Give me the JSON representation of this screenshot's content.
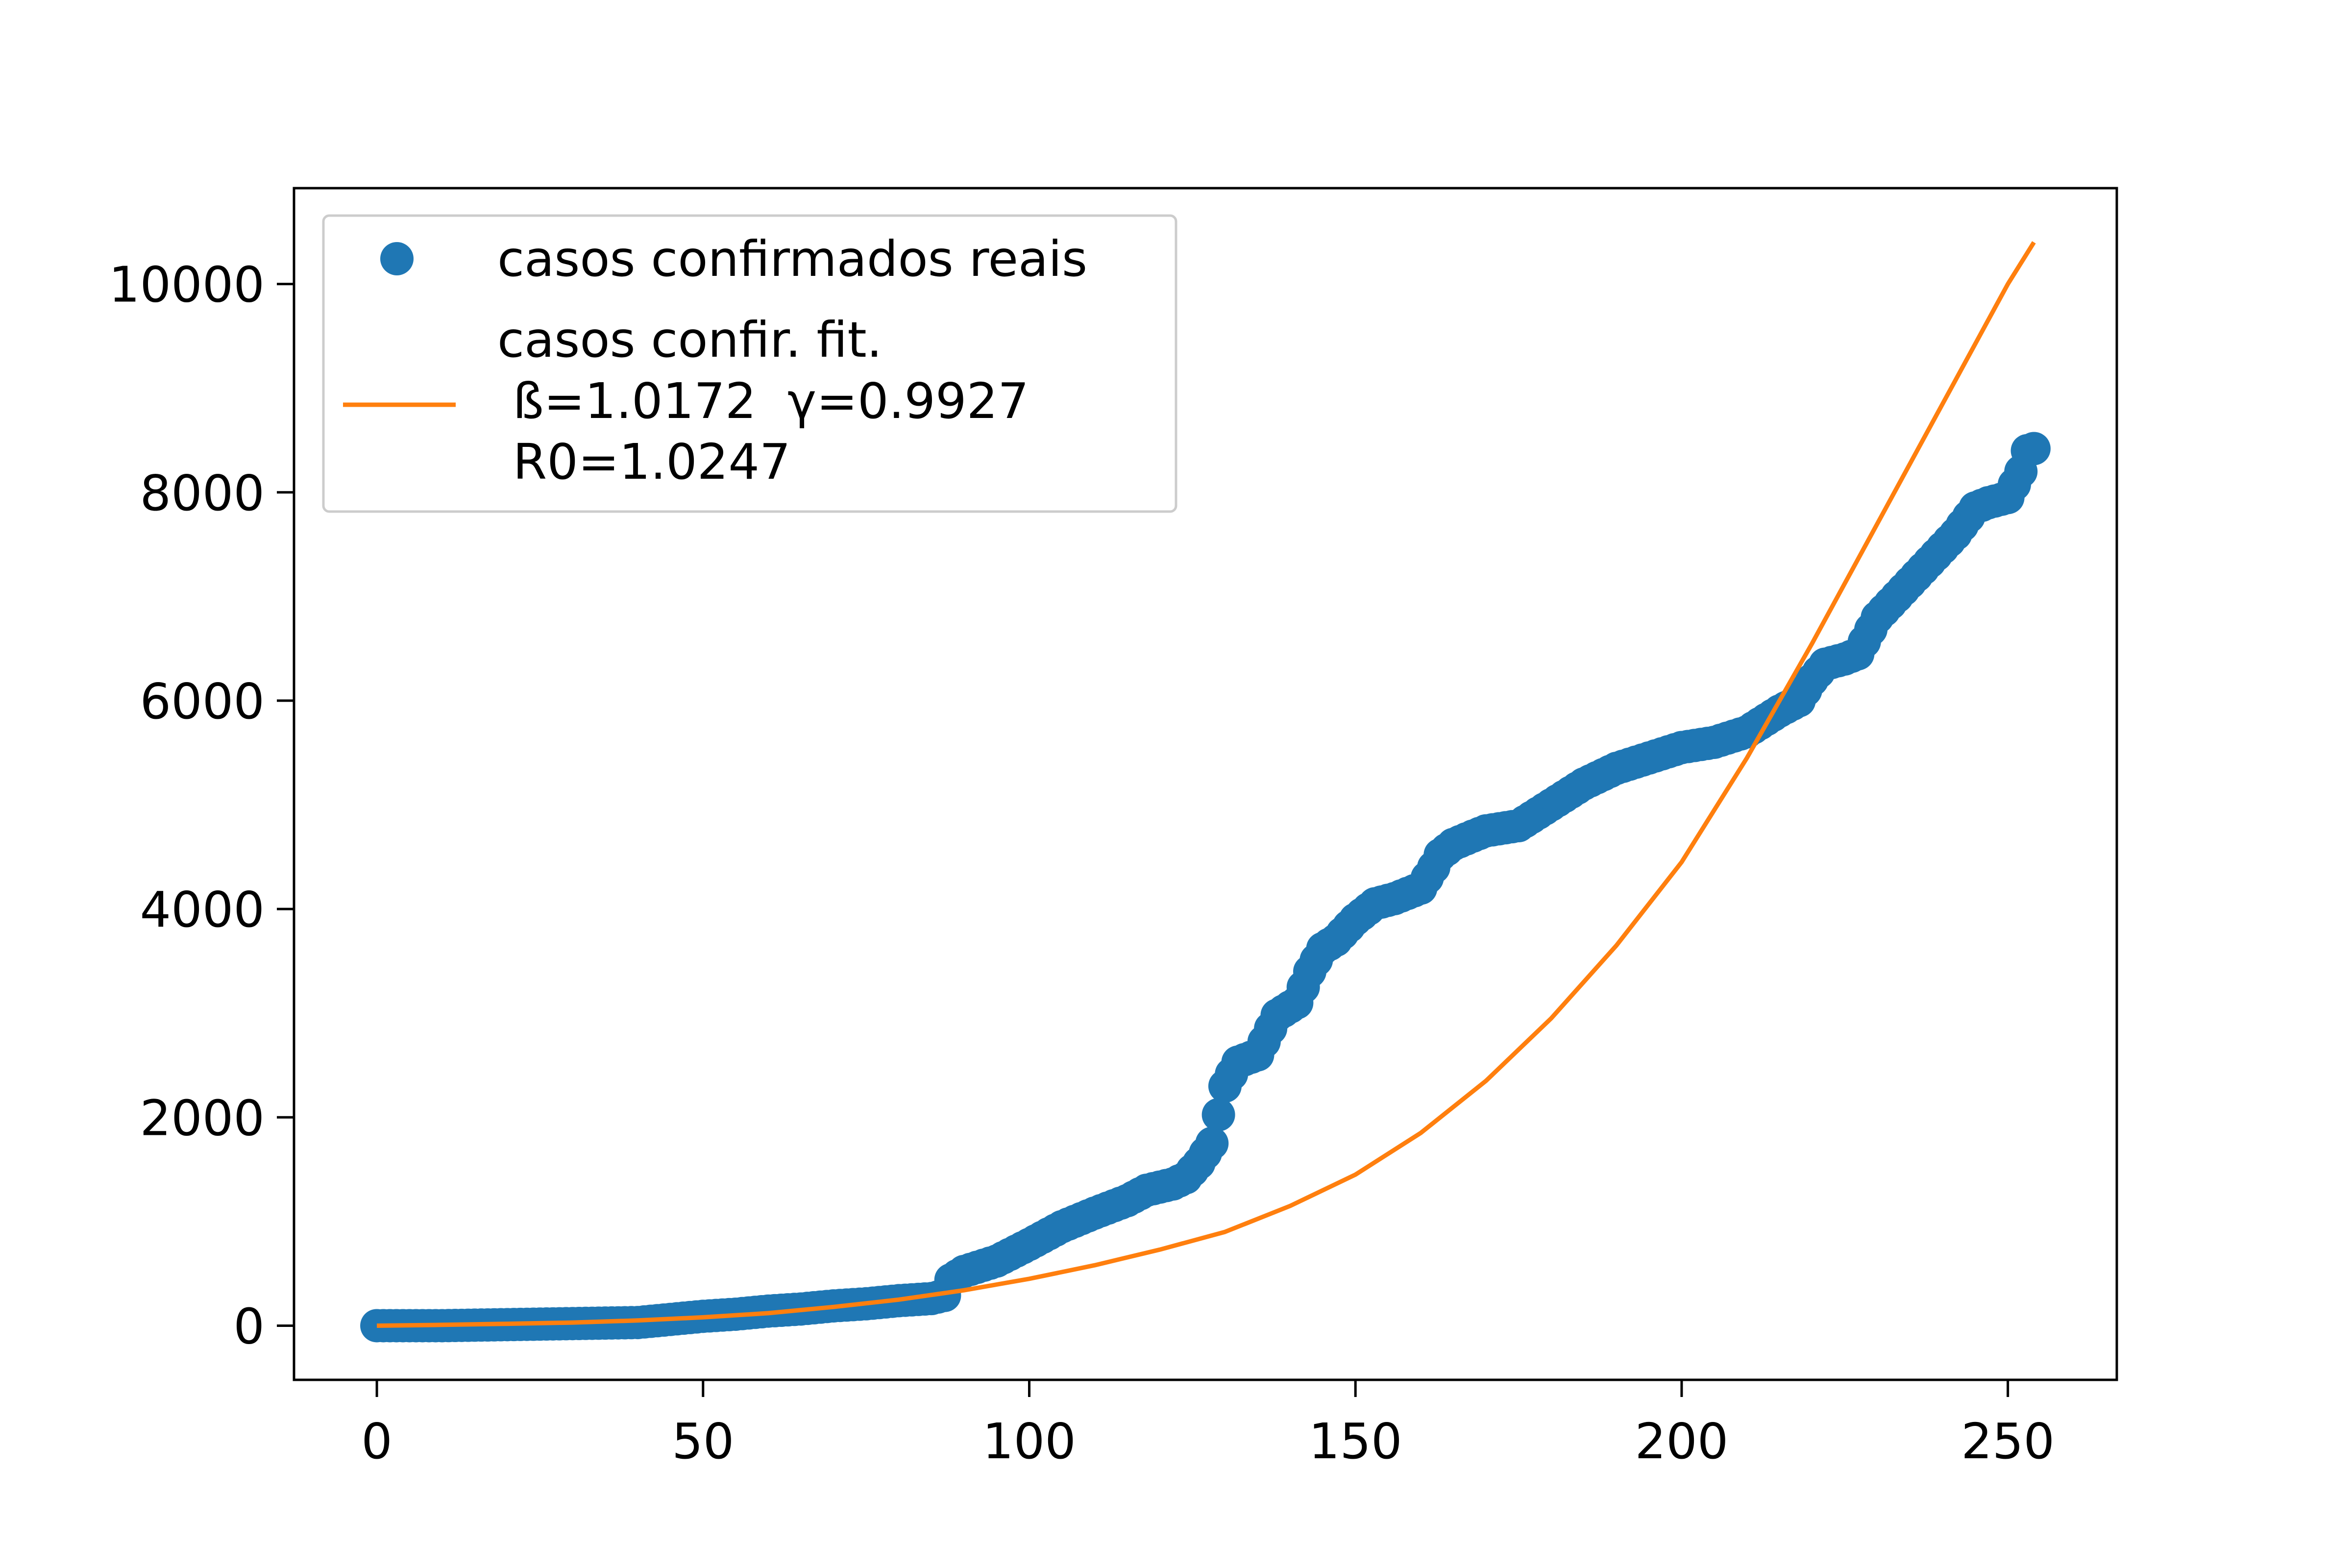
{
  "chart_data": {
    "type": "line",
    "title": "",
    "xlabel": "",
    "ylabel": "",
    "xlim": [
      -12.7,
      266.7
    ],
    "ylim": [
      -520,
      10920
    ],
    "xticks": [
      0,
      50,
      100,
      150,
      200,
      250
    ],
    "yticks": [
      0,
      2000,
      4000,
      6000,
      8000,
      10000
    ],
    "grid": false,
    "legend_position": "upper left",
    "series": [
      {
        "name": "casos confirmados reais",
        "kind": "scatter",
        "color": "#1f77b4",
        "x": [
          0,
          10,
          20,
          30,
          40,
          45,
          50,
          55,
          60,
          65,
          70,
          75,
          80,
          85,
          87,
          88,
          90,
          95,
          100,
          105,
          110,
          115,
          118,
          120,
          122,
          124,
          126,
          128,
          130,
          132,
          135,
          138,
          141,
          143,
          145,
          147,
          150,
          153,
          156,
          160,
          162,
          163,
          165,
          168,
          170,
          175,
          180,
          185,
          190,
          195,
          200,
          205,
          210,
          215,
          218,
          220,
          222,
          225,
          227,
          230,
          233,
          236,
          239,
          242,
          245,
          247,
          250,
          252,
          253,
          254
        ],
        "y": [
          0,
          0,
          10,
          20,
          30,
          60,
          90,
          110,
          140,
          160,
          190,
          210,
          240,
          260,
          290,
          440,
          520,
          620,
          780,
          950,
          1080,
          1200,
          1300,
          1330,
          1360,
          1420,
          1560,
          1750,
          2300,
          2530,
          2600,
          2980,
          3100,
          3400,
          3620,
          3700,
          3900,
          4050,
          4100,
          4200,
          4400,
          4520,
          4620,
          4700,
          4750,
          4800,
          5000,
          5200,
          5350,
          5450,
          5550,
          5600,
          5700,
          5900,
          6000,
          6200,
          6350,
          6400,
          6450,
          6800,
          7000,
          7200,
          7400,
          7600,
          7850,
          7900,
          7950,
          8200,
          8400,
          8420
        ]
      },
      {
        "name": "casos confir. fit.\n ß=1.0172  γ=0.9927\n R0=1.0247",
        "kind": "line",
        "color": "#ff7f0e",
        "x": [
          0,
          10,
          20,
          30,
          40,
          50,
          60,
          70,
          80,
          90,
          100,
          110,
          120,
          130,
          140,
          150,
          160,
          170,
          180,
          190,
          200,
          210,
          220,
          230,
          240,
          250,
          254
        ],
        "y": [
          0,
          8,
          18,
          30,
          50,
          80,
          120,
          180,
          250,
          340,
          450,
          580,
          730,
          900,
          1150,
          1450,
          1850,
          2350,
          2950,
          3650,
          4450,
          5450,
          6550,
          7700,
          8850,
          10000,
          10400
        ]
      }
    ]
  },
  "legend": {
    "entries": [
      {
        "lines": [
          "casos confirmados reais"
        ]
      },
      {
        "lines": [
          "casos confir. fit.",
          " ß=1.0172  γ=0.9927",
          " R0=1.0247"
        ]
      }
    ]
  },
  "tick_labels": {
    "x": [
      "0",
      "50",
      "100",
      "150",
      "200",
      "250"
    ],
    "y": [
      "0",
      "2000",
      "4000",
      "6000",
      "8000",
      "10000"
    ]
  }
}
